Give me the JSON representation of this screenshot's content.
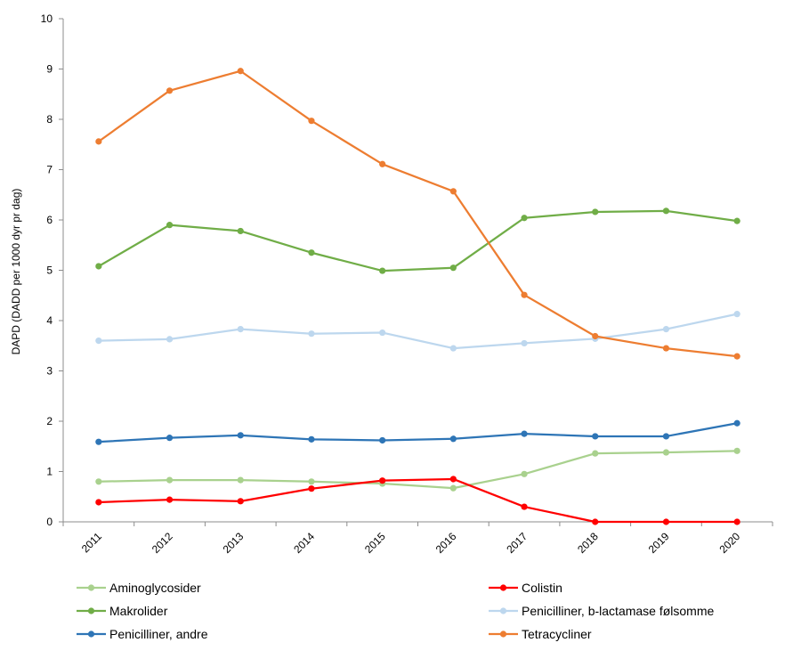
{
  "chart_data": {
    "type": "line",
    "ylabel": "DAPD (DADD per 1000 dyr pr dag)",
    "xlabel": "",
    "ylim": [
      0,
      10
    ],
    "yticks": [
      "0",
      "1",
      "2",
      "3",
      "4",
      "5",
      "6",
      "7",
      "8",
      "9",
      "10"
    ],
    "categories": [
      "2011",
      "2012",
      "2013",
      "2014",
      "2015",
      "2016",
      "2017",
      "2018",
      "2019",
      "2020"
    ],
    "grid": false,
    "legend": "bottom",
    "series": [
      {
        "name": "Aminoglycosider",
        "color": "#a9d18e",
        "values": [
          0.8,
          0.83,
          0.83,
          0.8,
          0.76,
          0.67,
          0.95,
          1.36,
          1.38,
          1.41
        ]
      },
      {
        "name": "Colistin",
        "color": "#ff0000",
        "values": [
          0.39,
          0.44,
          0.41,
          0.66,
          0.82,
          0.85,
          0.3,
          0.0,
          0.0,
          0.0
        ]
      },
      {
        "name": "Makrolider",
        "color": "#70ad47",
        "values": [
          5.08,
          5.9,
          5.78,
          5.35,
          4.99,
          5.05,
          6.04,
          6.16,
          6.18,
          5.98
        ]
      },
      {
        "name": "Penicilliner,  b-lactamase følsomme",
        "color": "#bdd7ee",
        "values": [
          3.6,
          3.63,
          3.83,
          3.74,
          3.76,
          3.45,
          3.55,
          3.64,
          3.83,
          4.13
        ]
      },
      {
        "name": "Penicilliner, andre",
        "color": "#2e75b6",
        "values": [
          1.59,
          1.67,
          1.72,
          1.64,
          1.62,
          1.65,
          1.75,
          1.7,
          1.7,
          1.96
        ]
      },
      {
        "name": "Tetracycliner",
        "color": "#ed7d31",
        "values": [
          7.56,
          8.57,
          8.96,
          7.97,
          7.11,
          6.57,
          4.51,
          3.69,
          3.45,
          3.29
        ]
      }
    ]
  }
}
